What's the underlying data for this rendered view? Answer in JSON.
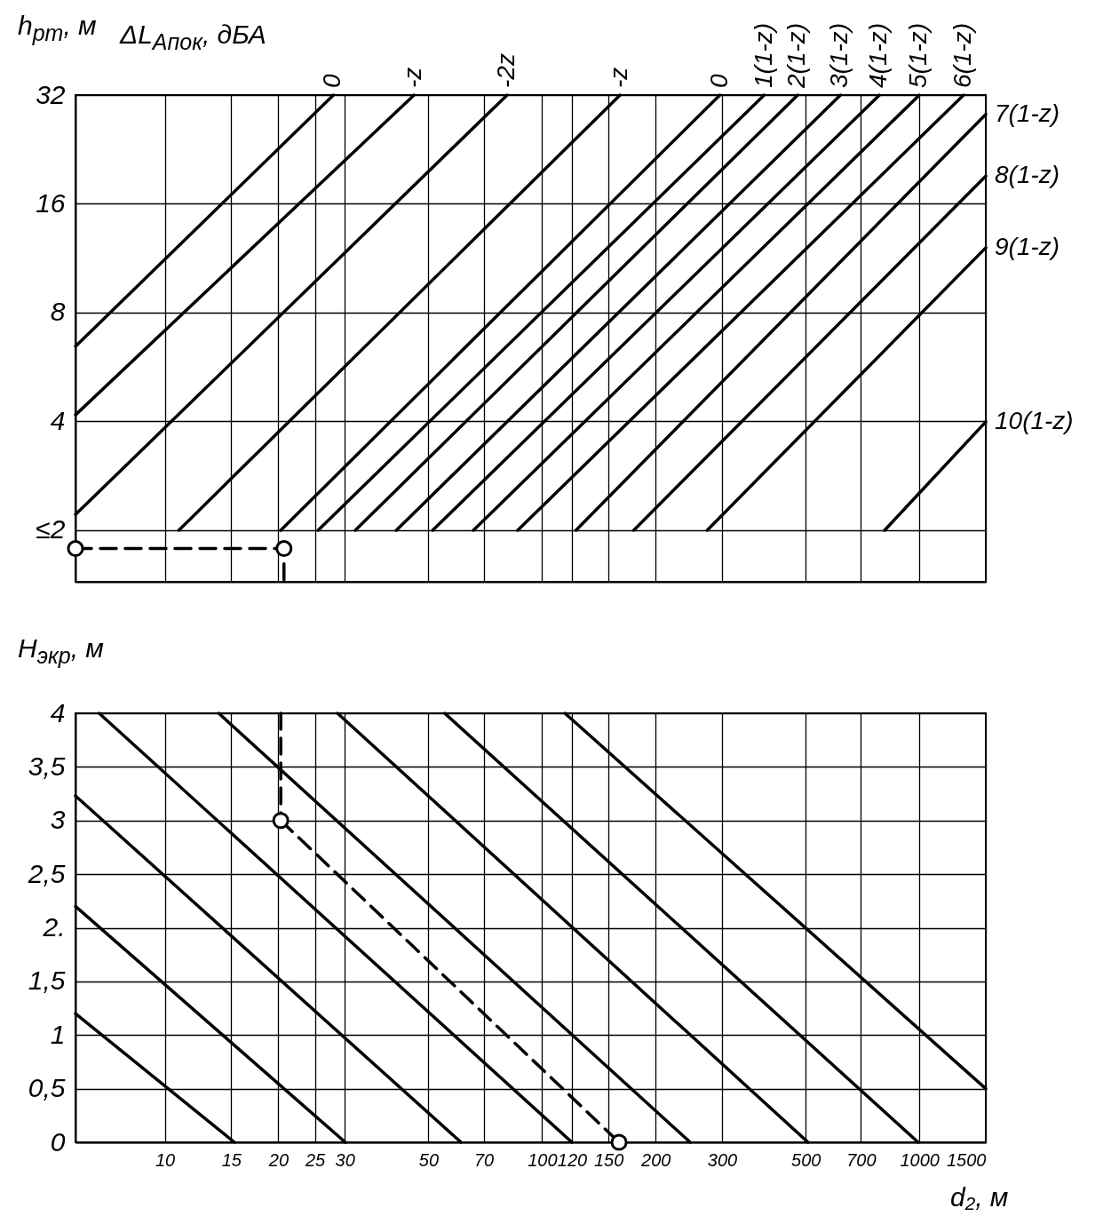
{
  "chart_data": [
    {
      "type": "line",
      "ylabel": "h$_{рт}$, м",
      "legend_title": "ΔL$_{Aпок}$, дБА",
      "log": "xy",
      "xlim": [
        5.8,
        1500
      ],
      "ylim": [
        1.44,
        32
      ],
      "xticks": [
        10,
        15,
        20,
        25,
        30,
        50,
        70,
        100,
        120,
        150,
        200,
        300,
        500,
        700,
        1000,
        1500
      ],
      "yticks": [
        {
          "value": 2,
          "label": "≤2"
        },
        4,
        8,
        16,
        32
      ],
      "grid": true,
      "tick_labels": "y",
      "series": [
        {
          "name": "0",
          "color": "#000000",
          "x": [
            5.8,
            28.0
          ],
          "values": [
            6.45,
            32
          ]
        },
        {
          "name": "-z",
          "color": "#000000",
          "x": [
            5.8,
            45.8
          ],
          "values": [
            4.17,
            32
          ]
        },
        {
          "name": "-2z",
          "color": "#000000",
          "x": [
            5.8,
            80.8
          ],
          "values": [
            2.21,
            32
          ]
        },
        {
          "name": "-z",
          "color": "#000000",
          "x": [
            10.9,
            161
          ],
          "values": [
            2,
            32
          ]
        },
        {
          "name": "0",
          "color": "#000000",
          "x": [
            20.3,
            296
          ],
          "values": [
            2,
            32
          ]
        },
        {
          "name": "1(1-z)",
          "color": "#000000",
          "x": [
            25.5,
            388
          ],
          "values": [
            2,
            32
          ]
        },
        {
          "name": "2(1-z)",
          "color": "#000000",
          "x": [
            32.0,
            476
          ],
          "values": [
            2,
            32
          ]
        },
        {
          "name": "3(1-z)",
          "color": "#000000",
          "x": [
            41.1,
            618
          ],
          "values": [
            2,
            32
          ]
        },
        {
          "name": "4(1-z)",
          "color": "#000000",
          "x": [
            51.3,
            784
          ],
          "values": [
            2,
            32
          ]
        },
        {
          "name": "5(1-z)",
          "color": "#000000",
          "x": [
            65.8,
            1000
          ],
          "values": [
            2,
            32
          ]
        },
        {
          "name": "6(1-z)",
          "color": "#000000",
          "x": [
            86.2,
            1310
          ],
          "values": [
            2,
            32
          ]
        },
        {
          "name": "7(1-z)",
          "color": "#000000",
          "x": [
            123,
            1500
          ],
          "values": [
            2,
            28.3
          ]
        },
        {
          "name": "8(1-z)",
          "color": "#000000",
          "x": [
            175,
            1500
          ],
          "values": [
            2,
            19.1
          ]
        },
        {
          "name": "9(1-z)",
          "color": "#000000",
          "x": [
            274,
            1500
          ],
          "values": [
            2,
            12.1
          ]
        },
        {
          "name": "10(1-z)",
          "color": "#000000",
          "x": [
            809,
            1500
          ],
          "values": [
            2,
            3.99
          ]
        },
        {
          "type": "line",
          "line_style": "dashed",
          "color": "#000000",
          "x": [
            5.8,
            20.7,
            20.7
          ],
          "values": [
            1.78,
            1.78,
            1.44
          ]
        },
        {
          "type": "scatter",
          "marker": "circle",
          "color": "#000000",
          "x": [
            5.8,
            20.7
          ],
          "values": [
            1.78,
            1.78
          ]
        }
      ]
    },
    {
      "type": "line",
      "ylabel": "H$_{экр}$, м",
      "xlabel": "d₂, м",
      "log": "x",
      "xlim": [
        5.8,
        1500
      ],
      "ylim": [
        0,
        4
      ],
      "xticks": [
        10,
        15,
        20,
        25,
        30,
        50,
        70,
        100,
        120,
        150,
        200,
        300,
        500,
        700,
        1000,
        1500
      ],
      "yticks": [
        0,
        {
          "value": 0.5,
          "label": "0,5"
        },
        1,
        {
          "value": 1.5,
          "label": "1,5"
        },
        {
          "value": 2,
          "label": "2."
        },
        {
          "value": 2.5,
          "label": "2,5"
        },
        3,
        {
          "value": 3.5,
          "label": "3,5"
        },
        4
      ],
      "grid": true,
      "series": [
        {
          "color": "#000000",
          "x": [
            5.8,
            15.3
          ],
          "values": [
            1.2,
            0
          ]
        },
        {
          "color": "#000000",
          "x": [
            5.8,
            30.1
          ],
          "values": [
            2.2,
            0
          ]
        },
        {
          "color": "#000000",
          "x": [
            5.8,
            61
          ],
          "values": [
            3.23,
            0
          ]
        },
        {
          "color": "#000000",
          "x": [
            6.7,
            120
          ],
          "values": [
            4,
            0
          ]
        },
        {
          "color": "#000000",
          "x": [
            13.9,
            247
          ],
          "values": [
            4,
            0
          ]
        },
        {
          "color": "#000000",
          "x": [
            28.7,
            507
          ],
          "values": [
            4,
            0
          ]
        },
        {
          "color": "#000000",
          "x": [
            55.2,
            993
          ],
          "values": [
            4,
            0
          ]
        },
        {
          "color": "#000000",
          "x": [
            115,
            1500
          ],
          "values": [
            4,
            0.5
          ]
        },
        {
          "type": "line",
          "line_style": "dashed",
          "color": "#000000",
          "x": [
            20.3,
            20.3
          ],
          "values": [
            4,
            3.0
          ]
        },
        {
          "type": "line",
          "line_style": "dashed",
          "color": "#000000",
          "x": [
            20.3,
            160
          ],
          "values": [
            3.0,
            0
          ]
        },
        {
          "type": "scatter",
          "marker": "circle",
          "color": "#000000",
          "x": [
            20.3,
            160
          ],
          "values": [
            3.0,
            0
          ]
        }
      ]
    }
  ]
}
